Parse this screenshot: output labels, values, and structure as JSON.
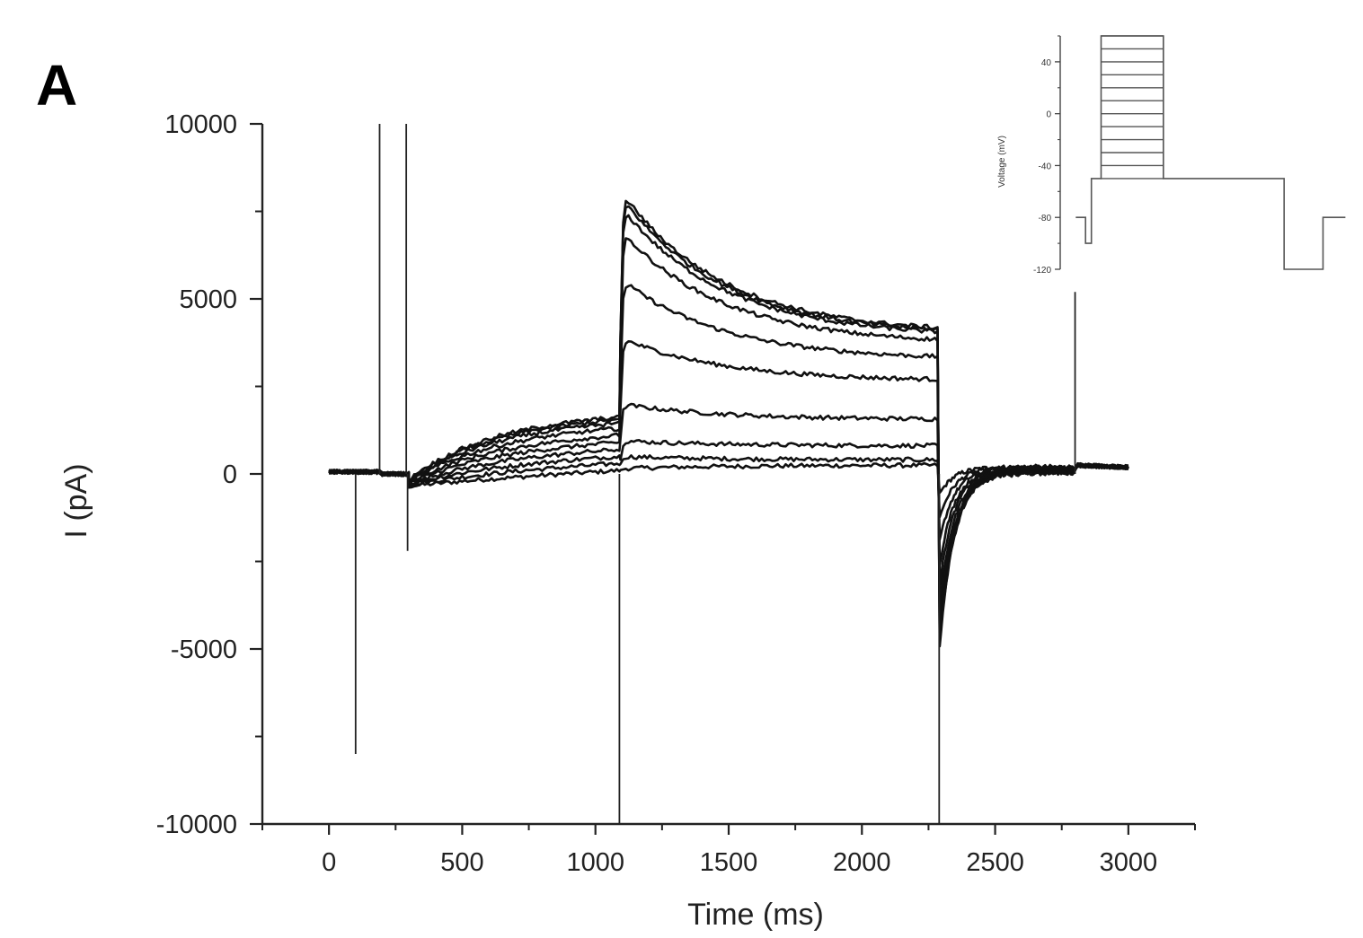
{
  "panel_label": "A",
  "chart_data": [
    {
      "type": "line",
      "title": "",
      "xlabel": "Time (ms)",
      "ylabel": "I (pA)",
      "xlim": [
        -250,
        3250
      ],
      "ylim": [
        -10000,
        10000
      ],
      "x_ticks": [
        0,
        500,
        1000,
        1500,
        2000,
        2500,
        3000
      ],
      "x_tick_labels": [
        "0",
        "500",
        "1000",
        "1500",
        "2000",
        "2500",
        "3000"
      ],
      "y_ticks": [
        -10000,
        -5000,
        0,
        5000,
        10000
      ],
      "y_tick_labels": [
        "-10000",
        "-5000",
        "0",
        "5000",
        "10000"
      ],
      "grid": false,
      "legend": "none",
      "line_color": "#111111",
      "artifacts": [
        {
          "x": 100,
          "y": -8000
        },
        {
          "x": 190,
          "y": 10000
        },
        {
          "x": 290,
          "y": 10000
        },
        {
          "x": 295,
          "y": -2200
        },
        {
          "x": 1090,
          "y": -10000
        },
        {
          "x": 2290,
          "y": -10000
        },
        {
          "x": 2800,
          "y": 5200
        }
      ],
      "series": [
        {
          "values": {
            "prepulse_end": 100,
            "step_peak": 150,
            "step_end": 250,
            "tail_min": -600
          }
        },
        {
          "values": {
            "prepulse_end": 300,
            "step_peak": 500,
            "step_end": 400,
            "tail_min": -1300
          }
        },
        {
          "values": {
            "prepulse_end": 500,
            "step_peak": 950,
            "step_end": 800,
            "tail_min": -2000
          }
        },
        {
          "values": {
            "prepulse_end": 700,
            "step_peak": 2000,
            "step_end": 1550,
            "tail_min": -2700
          }
        },
        {
          "values": {
            "prepulse_end": 900,
            "step_peak": 3900,
            "step_end": 2650,
            "tail_min": -3300
          }
        },
        {
          "values": {
            "prepulse_end": 1100,
            "step_peak": 5600,
            "step_end": 3250,
            "tail_min": -3900
          }
        },
        {
          "values": {
            "prepulse_end": 1300,
            "step_peak": 7000,
            "step_end": 3700,
            "tail_min": -4400
          }
        },
        {
          "values": {
            "prepulse_end": 1450,
            "step_peak": 7700,
            "step_end": 3900,
            "tail_min": -4800
          }
        },
        {
          "values": {
            "prepulse_end": 1550,
            "step_peak": 8000,
            "step_end": 3950,
            "tail_min": -5000
          }
        },
        {
          "values": {
            "prepulse_end": 1620,
            "step_peak": 8150,
            "step_end": 4000,
            "tail_min": -5100
          }
        }
      ]
    },
    {
      "type": "line",
      "title": "",
      "xlabel": "",
      "ylabel": "Voltage (mV)",
      "xlim": [
        0,
        3000
      ],
      "ylim": [
        -120,
        60
      ],
      "y_ticks": [
        -120,
        -80,
        -40,
        0,
        40
      ],
      "y_tick_labels": [
        "-120",
        "-80",
        "-40",
        "0",
        "40"
      ],
      "grid": false,
      "line_color": "#555555",
      "protocol": {
        "holding_mV": -80,
        "prepulse_mV": -100,
        "step_levels_mV": [
          -50,
          -40,
          -30,
          -20,
          -10,
          0,
          10,
          20,
          30,
          40,
          50,
          60
        ],
        "test_pulse_mV": -50,
        "hyperpolarizing_mV": -120,
        "segments_ms": [
          {
            "from": 0,
            "to": 100,
            "level": "holding"
          },
          {
            "from": 100,
            "to": 200,
            "level": "prepulse"
          },
          {
            "from": 200,
            "to": 300,
            "level": "test"
          },
          {
            "from": 300,
            "to": 1100,
            "level": "steps"
          },
          {
            "from": 1100,
            "to": 2300,
            "level": "test"
          },
          {
            "from": 2300,
            "to": 2800,
            "level": "hyperpolarizing"
          },
          {
            "from": 2800,
            "to": 3000,
            "level": "holding"
          }
        ]
      }
    }
  ]
}
